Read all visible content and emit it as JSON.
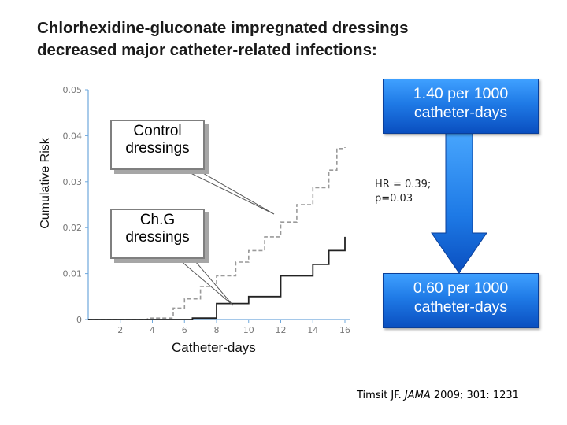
{
  "title_lines": [
    "Chlorhexidine-gluconate impregnated dressings",
    "decreased major catheter-related infections:"
  ],
  "chart_data": {
    "type": "line",
    "ylabel": "Cumulative Risk",
    "xlabel": "Catheter-days",
    "xticks": [
      "2",
      "4",
      "6",
      "8",
      "10",
      "12",
      "14",
      "16"
    ],
    "yticks": [
      "0",
      "0.01",
      "0.02",
      "0.03",
      "0.04",
      "0.05"
    ],
    "xlim": [
      0,
      16
    ],
    "ylim": [
      0,
      0.05
    ],
    "grid": false,
    "series": [
      {
        "name": "Control dressings",
        "style": "dashed",
        "color": "#9a9a9a",
        "step_points": [
          [
            0,
            0
          ],
          [
            3.7,
            0
          ],
          [
            3.7,
            0.0003
          ],
          [
            5.3,
            0.0003
          ],
          [
            5.3,
            0.0025
          ],
          [
            6,
            0.0025
          ],
          [
            6,
            0.0045
          ],
          [
            7,
            0.0045
          ],
          [
            7,
            0.0072
          ],
          [
            8,
            0.0072
          ],
          [
            8,
            0.0095
          ],
          [
            9.2,
            0.0095
          ],
          [
            9.2,
            0.0125
          ],
          [
            10,
            0.0125
          ],
          [
            10,
            0.015
          ],
          [
            11,
            0.015
          ],
          [
            11,
            0.018
          ],
          [
            12,
            0.018
          ],
          [
            12,
            0.0212
          ],
          [
            13,
            0.0212
          ],
          [
            13,
            0.025
          ],
          [
            14,
            0.025
          ],
          [
            14,
            0.0287
          ],
          [
            15,
            0.0287
          ],
          [
            15,
            0.0325
          ],
          [
            15.5,
            0.0325
          ],
          [
            15.5,
            0.0372
          ],
          [
            16,
            0.0372
          ],
          [
            16,
            0.0375
          ]
        ]
      },
      {
        "name": "Ch.G dressings",
        "style": "solid",
        "color": "#222222",
        "step_points": [
          [
            0,
            0
          ],
          [
            6.5,
            0
          ],
          [
            6.5,
            0.0003
          ],
          [
            8,
            0.0003
          ],
          [
            8,
            0.0035
          ],
          [
            10,
            0.0035
          ],
          [
            10,
            0.005
          ],
          [
            12,
            0.005
          ],
          [
            12,
            0.0095
          ],
          [
            14,
            0.0095
          ],
          [
            14,
            0.012
          ],
          [
            15,
            0.012
          ],
          [
            15,
            0.015
          ],
          [
            16,
            0.015
          ],
          [
            16,
            0.018
          ]
        ]
      }
    ]
  },
  "callouts": {
    "control": "Control dressings",
    "chg": "Ch.G dressings"
  },
  "rate_high": "1.40 per 1000 catheter-days",
  "rate_low": "0.60 per 1000 catheter-days",
  "hr_note": "HR = 0.39; p=0.03",
  "citation": {
    "author": "Timsit JF. ",
    "journal": "JAMA",
    "rest": " 2009; 301: 1231"
  },
  "colors": {
    "arrow": "#1e7ae6",
    "axis": "#6fa8dc"
  }
}
